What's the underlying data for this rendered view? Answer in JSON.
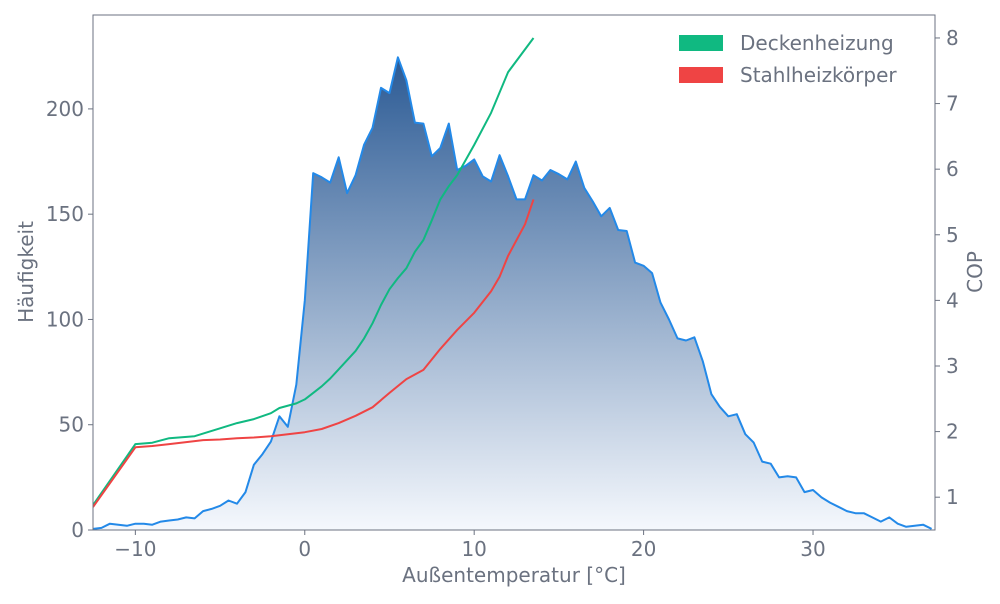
{
  "chart_data": {
    "type": "area",
    "title": "",
    "xlabel": "Außentemperatur [°C]",
    "ylabel": "Häufigkeit",
    "y2label": "COP",
    "xlim": [
      -12.5,
      37.2
    ],
    "ylim": [
      0,
      244.6
    ],
    "y2lim": [
      0.5,
      8.35
    ],
    "xticks": [
      -10,
      0,
      10,
      20,
      30
    ],
    "xtick_labels": [
      "−10",
      "0",
      "10",
      "20",
      "30"
    ],
    "yticks": [
      0,
      50,
      100,
      150,
      200
    ],
    "y2ticks": [
      1,
      2,
      3,
      4,
      5,
      6,
      7,
      8
    ],
    "grid": false,
    "legend_position": "top-right",
    "histogram": {
      "color": "#2389e8",
      "fill_top": "#2b5a94",
      "fill_bottom": "#f5f8fd",
      "x": [
        -12.5,
        -12,
        -11.5,
        -11,
        -10.5,
        -10,
        -9.5,
        -9,
        -8.5,
        -8,
        -7.5,
        -7,
        -6.5,
        -6,
        -5.5,
        -5,
        -4.5,
        -4,
        -3.5,
        -3,
        -2.5,
        -2,
        -1.5,
        -1,
        -0.5,
        0,
        0.5,
        1,
        1.5,
        2,
        2.5,
        3,
        3.5,
        4,
        4.5,
        5,
        5.5,
        6,
        6.5,
        7,
        7.5,
        8,
        8.5,
        9,
        9.5,
        10,
        10.5,
        11,
        11.5,
        12,
        12.5,
        13,
        13.5,
        14,
        14.5,
        15,
        15.5,
        16,
        16.5,
        17,
        17.5,
        18,
        18.5,
        19,
        19.5,
        20,
        20.5,
        21,
        21.5,
        22,
        22.5,
        23,
        23.5,
        24,
        24.5,
        25,
        25.5,
        26,
        26.5,
        27,
        27.5,
        28,
        28.5,
        29,
        29.5,
        30,
        30.5,
        31,
        31.5,
        32,
        32.5,
        33,
        33.5,
        34,
        34.5,
        35,
        35.5,
        36,
        36.5,
        37
      ],
      "values": [
        0.5,
        1,
        3,
        2.5,
        2,
        3,
        3,
        2.5,
        4,
        4.5,
        5,
        6,
        5.5,
        9,
        10,
        11.5,
        14,
        12.5,
        18,
        31,
        36,
        42,
        54,
        49,
        69,
        109,
        169.5,
        167.5,
        165,
        177,
        160,
        168.5,
        183,
        191,
        210,
        207.5,
        224.5,
        213.5,
        193.5,
        193,
        177.5,
        181.5,
        193,
        171,
        173,
        176,
        168,
        165.5,
        178,
        168,
        157,
        157,
        168.5,
        166,
        171,
        169,
        166.5,
        175,
        162.5,
        156,
        149,
        153,
        142.5,
        142,
        127,
        125.5,
        122,
        108,
        100,
        91,
        90,
        91.5,
        80,
        64.5,
        58.5,
        54,
        55,
        45.5,
        41.5,
        32.5,
        31.5,
        25,
        25.5,
        25,
        18,
        19,
        15.5,
        13,
        11,
        9,
        8,
        8,
        6,
        4,
        6,
        3,
        1.5,
        2,
        2.5,
        0.5
      ]
    },
    "series": [
      {
        "name": "Deckenheizung",
        "color": "#10b981",
        "axis": "right",
        "x": [
          -12.5,
          -10,
          -9,
          -8,
          -6.5,
          -5,
          -4,
          -3,
          -2,
          -1.5,
          -0.5,
          0,
          0.5,
          1,
          1.5,
          2,
          3,
          3.5,
          4,
          4.5,
          5,
          5.5,
          6,
          6.5,
          7,
          7.5,
          8,
          8.5,
          9,
          10,
          11,
          12,
          13.5
        ],
        "values": [
          0.88,
          1.81,
          1.83,
          1.9,
          1.93,
          2.05,
          2.13,
          2.19,
          2.28,
          2.36,
          2.43,
          2.49,
          2.59,
          2.69,
          2.81,
          2.95,
          3.23,
          3.42,
          3.65,
          3.93,
          4.17,
          4.34,
          4.49,
          4.74,
          4.92,
          5.22,
          5.54,
          5.74,
          5.91,
          6.37,
          6.86,
          7.48,
          8.0
        ]
      },
      {
        "name": "Stahlheizkörper",
        "color": "#ef4444",
        "axis": "right",
        "x": [
          -12.5,
          -10,
          -9,
          -8,
          -7,
          -6,
          -5,
          -4,
          -3,
          -2,
          -1,
          0,
          1,
          2,
          3,
          4,
          5,
          6,
          7,
          8,
          9,
          10,
          11,
          11.5,
          12,
          13,
          13.5
        ],
        "values": [
          0.85,
          1.76,
          1.78,
          1.81,
          1.84,
          1.87,
          1.88,
          1.9,
          1.91,
          1.93,
          1.96,
          1.99,
          2.04,
          2.13,
          2.24,
          2.37,
          2.59,
          2.8,
          2.94,
          3.26,
          3.55,
          3.81,
          4.14,
          4.36,
          4.68,
          5.16,
          5.54
        ]
      }
    ]
  }
}
